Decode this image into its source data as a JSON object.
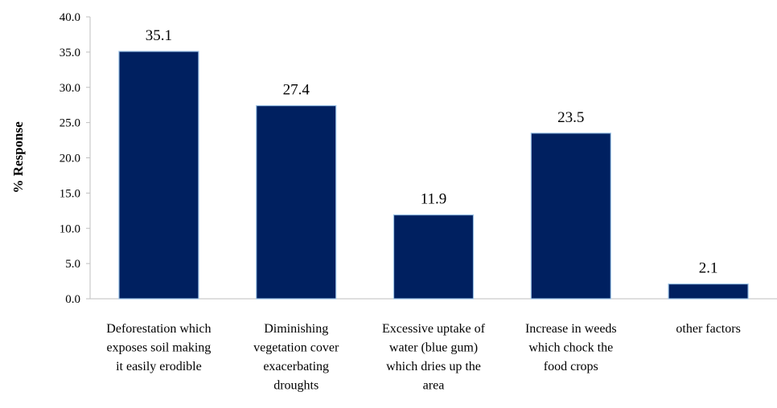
{
  "chart_data": {
    "type": "bar",
    "title": "",
    "xlabel": "",
    "ylabel": "% Response",
    "ylim": [
      0,
      40
    ],
    "yticks": [
      "0.0",
      "5.0",
      "10.0",
      "15.0",
      "20.0",
      "25.0",
      "30.0",
      "35.0",
      "40.0"
    ],
    "grid": false,
    "legend": "none",
    "bar_color": "#002060",
    "categories": [
      "Deforestation which exposes soil making it easily erodible",
      "Diminishing vegetation cover exacerbating droughts",
      "Excessive uptake of water (blue gum) which dries up the area",
      "Increase in weeds which chock the food crops",
      "other factors"
    ],
    "category_lines": [
      [
        "Deforestation which",
        "exposes soil making",
        "it easily erodible"
      ],
      [
        "Diminishing",
        "vegetation cover",
        "exacerbating",
        "droughts"
      ],
      [
        "Excessive uptake of",
        "water (blue gum)",
        "which dries up the",
        "area"
      ],
      [
        "Increase in weeds",
        "which chock the",
        "food crops"
      ],
      [
        "other factors"
      ]
    ],
    "values": [
      35.1,
      27.4,
      11.9,
      23.5,
      2.1
    ],
    "data_labels": [
      "35.1",
      "27.4",
      "11.9",
      "23.5",
      "2.1"
    ]
  }
}
